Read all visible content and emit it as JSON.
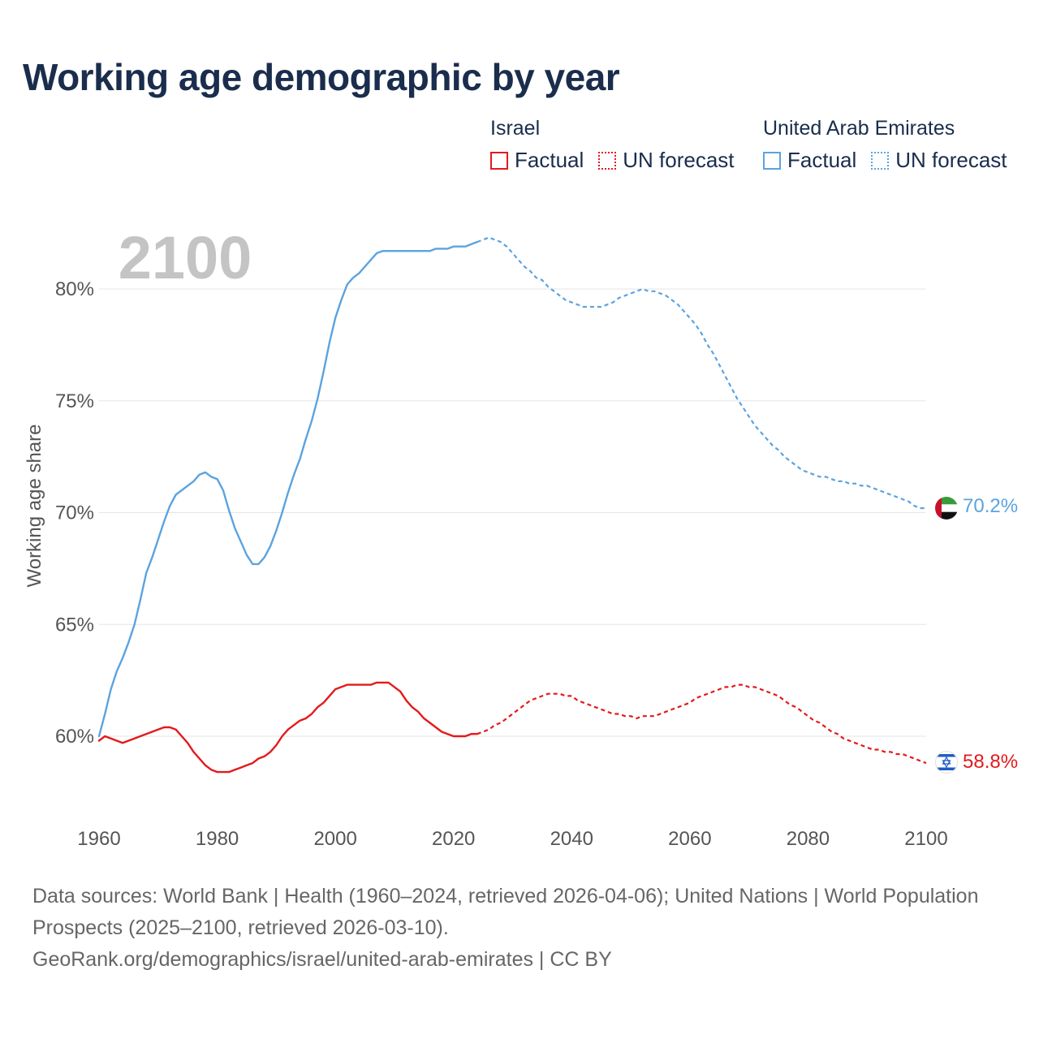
{
  "title": "Working age demographic by year",
  "legend": {
    "groups": [
      {
        "name": "Israel",
        "factual_label": "Factual",
        "forecast_label": "UN forecast",
        "color": "#e31a1c"
      },
      {
        "name": "United Arab Emirates",
        "factual_label": "Factual",
        "forecast_label": "UN forecast",
        "color": "#5ba3e0"
      }
    ]
  },
  "sources": {
    "text": "Data sources: World Bank | Health (1960–2024, retrieved 2026-04-06); United Nations | World Population Prospects (2025–2100, retrieved 2026-03-10).",
    "credit": "GeoRank.org/demographics/israel/united-arab-emirates | CC BY"
  },
  "chart_data": {
    "type": "line",
    "title": "Working age demographic by year",
    "xlabel": "",
    "ylabel": "Working age share",
    "xlim": [
      1960,
      2100
    ],
    "ylim": [
      57.5,
      82.5
    ],
    "x_ticks": [
      1960,
      1980,
      2000,
      2020,
      2040,
      2060,
      2080,
      2100
    ],
    "y_ticks": [
      {
        "value": 60,
        "label": "60%"
      },
      {
        "value": 65,
        "label": "65%"
      },
      {
        "value": 70,
        "label": "70%"
      },
      {
        "value": 75,
        "label": "75%"
      },
      {
        "value": 80,
        "label": "80%"
      }
    ],
    "year_watermark": "2100",
    "factual_end_year": 2024,
    "series": [
      {
        "name": "Israel",
        "color": "#e31a1c",
        "end_label": "58.8%",
        "flag": "israel",
        "points": [
          [
            1960,
            59.8
          ],
          [
            1961,
            60.0
          ],
          [
            1962,
            59.9
          ],
          [
            1963,
            59.8
          ],
          [
            1964,
            59.7
          ],
          [
            1965,
            59.8
          ],
          [
            1966,
            59.9
          ],
          [
            1967,
            60.0
          ],
          [
            1968,
            60.1
          ],
          [
            1969,
            60.2
          ],
          [
            1970,
            60.3
          ],
          [
            1971,
            60.4
          ],
          [
            1972,
            60.4
          ],
          [
            1973,
            60.3
          ],
          [
            1974,
            60.0
          ],
          [
            1975,
            59.7
          ],
          [
            1976,
            59.3
          ],
          [
            1977,
            59.0
          ],
          [
            1978,
            58.7
          ],
          [
            1979,
            58.5
          ],
          [
            1980,
            58.4
          ],
          [
            1981,
            58.4
          ],
          [
            1982,
            58.4
          ],
          [
            1983,
            58.5
          ],
          [
            1984,
            58.6
          ],
          [
            1985,
            58.7
          ],
          [
            1986,
            58.8
          ],
          [
            1987,
            59.0
          ],
          [
            1988,
            59.1
          ],
          [
            1989,
            59.3
          ],
          [
            1990,
            59.6
          ],
          [
            1991,
            60.0
          ],
          [
            1992,
            60.3
          ],
          [
            1993,
            60.5
          ],
          [
            1994,
            60.7
          ],
          [
            1995,
            60.8
          ],
          [
            1996,
            61.0
          ],
          [
            1997,
            61.3
          ],
          [
            1998,
            61.5
          ],
          [
            1999,
            61.8
          ],
          [
            2000,
            62.1
          ],
          [
            2001,
            62.2
          ],
          [
            2002,
            62.3
          ],
          [
            2003,
            62.3
          ],
          [
            2004,
            62.3
          ],
          [
            2005,
            62.3
          ],
          [
            2006,
            62.3
          ],
          [
            2007,
            62.4
          ],
          [
            2008,
            62.4
          ],
          [
            2009,
            62.4
          ],
          [
            2010,
            62.2
          ],
          [
            2011,
            62.0
          ],
          [
            2012,
            61.6
          ],
          [
            2013,
            61.3
          ],
          [
            2014,
            61.1
          ],
          [
            2015,
            60.8
          ],
          [
            2016,
            60.6
          ],
          [
            2017,
            60.4
          ],
          [
            2018,
            60.2
          ],
          [
            2019,
            60.1
          ],
          [
            2020,
            60.0
          ],
          [
            2021,
            60.0
          ],
          [
            2022,
            60.0
          ],
          [
            2023,
            60.1
          ],
          [
            2024,
            60.1
          ],
          [
            2025,
            60.2
          ],
          [
            2026,
            60.3
          ],
          [
            2027,
            60.5
          ],
          [
            2028,
            60.6
          ],
          [
            2029,
            60.8
          ],
          [
            2030,
            61.0
          ],
          [
            2031,
            61.2
          ],
          [
            2032,
            61.4
          ],
          [
            2033,
            61.6
          ],
          [
            2034,
            61.7
          ],
          [
            2035,
            61.8
          ],
          [
            2036,
            61.9
          ],
          [
            2037,
            61.9
          ],
          [
            2038,
            61.9
          ],
          [
            2039,
            61.8
          ],
          [
            2040,
            61.8
          ],
          [
            2041,
            61.6
          ],
          [
            2042,
            61.5
          ],
          [
            2043,
            61.4
          ],
          [
            2044,
            61.3
          ],
          [
            2045,
            61.2
          ],
          [
            2046,
            61.1
          ],
          [
            2047,
            61.0
          ],
          [
            2048,
            61.0
          ],
          [
            2049,
            60.9
          ],
          [
            2050,
            60.9
          ],
          [
            2051,
            60.8
          ],
          [
            2052,
            60.9
          ],
          [
            2053,
            60.9
          ],
          [
            2054,
            60.9
          ],
          [
            2055,
            61.0
          ],
          [
            2056,
            61.1
          ],
          [
            2057,
            61.2
          ],
          [
            2058,
            61.3
          ],
          [
            2059,
            61.4
          ],
          [
            2060,
            61.5
          ],
          [
            2061,
            61.7
          ],
          [
            2062,
            61.8
          ],
          [
            2063,
            61.9
          ],
          [
            2064,
            62.0
          ],
          [
            2065,
            62.1
          ],
          [
            2066,
            62.2
          ],
          [
            2067,
            62.2
          ],
          [
            2068,
            62.3
          ],
          [
            2069,
            62.3
          ],
          [
            2070,
            62.2
          ],
          [
            2071,
            62.2
          ],
          [
            2072,
            62.1
          ],
          [
            2073,
            62.0
          ],
          [
            2074,
            61.9
          ],
          [
            2075,
            61.8
          ],
          [
            2076,
            61.6
          ],
          [
            2077,
            61.4
          ],
          [
            2078,
            61.3
          ],
          [
            2079,
            61.1
          ],
          [
            2080,
            60.9
          ],
          [
            2081,
            60.7
          ],
          [
            2082,
            60.6
          ],
          [
            2083,
            60.4
          ],
          [
            2084,
            60.2
          ],
          [
            2085,
            60.1
          ],
          [
            2086,
            59.9
          ],
          [
            2087,
            59.8
          ],
          [
            2088,
            59.7
          ],
          [
            2089,
            59.6
          ],
          [
            2090,
            59.5
          ],
          [
            2091,
            59.4
          ],
          [
            2092,
            59.4
          ],
          [
            2093,
            59.3
          ],
          [
            2094,
            59.3
          ],
          [
            2095,
            59.2
          ],
          [
            2096,
            59.2
          ],
          [
            2097,
            59.1
          ],
          [
            2098,
            59.0
          ],
          [
            2099,
            58.9
          ],
          [
            2100,
            58.8
          ]
        ]
      },
      {
        "name": "United Arab Emirates",
        "color": "#5ba3e0",
        "end_label": "70.2%",
        "flag": "uae",
        "points": [
          [
            1960,
            60.0
          ],
          [
            1961,
            61.0
          ],
          [
            1962,
            62.1
          ],
          [
            1963,
            62.9
          ],
          [
            1964,
            63.5
          ],
          [
            1965,
            64.2
          ],
          [
            1966,
            65.0
          ],
          [
            1967,
            66.1
          ],
          [
            1968,
            67.3
          ],
          [
            1969,
            68.0
          ],
          [
            1970,
            68.8
          ],
          [
            1971,
            69.6
          ],
          [
            1972,
            70.3
          ],
          [
            1973,
            70.8
          ],
          [
            1974,
            71.0
          ],
          [
            1975,
            71.2
          ],
          [
            1976,
            71.4
          ],
          [
            1977,
            71.7
          ],
          [
            1978,
            71.8
          ],
          [
            1979,
            71.6
          ],
          [
            1980,
            71.5
          ],
          [
            1981,
            71.0
          ],
          [
            1982,
            70.1
          ],
          [
            1983,
            69.3
          ],
          [
            1984,
            68.7
          ],
          [
            1985,
            68.1
          ],
          [
            1986,
            67.7
          ],
          [
            1987,
            67.7
          ],
          [
            1988,
            68.0
          ],
          [
            1989,
            68.5
          ],
          [
            1990,
            69.2
          ],
          [
            1991,
            70.0
          ],
          [
            1992,
            70.9
          ],
          [
            1993,
            71.7
          ],
          [
            1994,
            72.4
          ],
          [
            1995,
            73.3
          ],
          [
            1996,
            74.1
          ],
          [
            1997,
            75.1
          ],
          [
            1998,
            76.3
          ],
          [
            1999,
            77.6
          ],
          [
            2000,
            78.7
          ],
          [
            2001,
            79.5
          ],
          [
            2002,
            80.2
          ],
          [
            2003,
            80.5
          ],
          [
            2004,
            80.7
          ],
          [
            2005,
            81.0
          ],
          [
            2006,
            81.3
          ],
          [
            2007,
            81.6
          ],
          [
            2008,
            81.7
          ],
          [
            2009,
            81.7
          ],
          [
            2010,
            81.7
          ],
          [
            2011,
            81.7
          ],
          [
            2012,
            81.7
          ],
          [
            2013,
            81.7
          ],
          [
            2014,
            81.7
          ],
          [
            2015,
            81.7
          ],
          [
            2016,
            81.7
          ],
          [
            2017,
            81.8
          ],
          [
            2018,
            81.8
          ],
          [
            2019,
            81.8
          ],
          [
            2020,
            81.9
          ],
          [
            2021,
            81.9
          ],
          [
            2022,
            81.9
          ],
          [
            2023,
            82.0
          ],
          [
            2024,
            82.1
          ],
          [
            2025,
            82.2
          ],
          [
            2026,
            82.3
          ],
          [
            2027,
            82.2
          ],
          [
            2028,
            82.1
          ],
          [
            2029,
            81.9
          ],
          [
            2030,
            81.6
          ],
          [
            2031,
            81.3
          ],
          [
            2032,
            81.0
          ],
          [
            2033,
            80.8
          ],
          [
            2034,
            80.5
          ],
          [
            2035,
            80.4
          ],
          [
            2036,
            80.1
          ],
          [
            2037,
            79.9
          ],
          [
            2038,
            79.7
          ],
          [
            2039,
            79.5
          ],
          [
            2040,
            79.4
          ],
          [
            2041,
            79.3
          ],
          [
            2042,
            79.2
          ],
          [
            2043,
            79.2
          ],
          [
            2044,
            79.2
          ],
          [
            2045,
            79.2
          ],
          [
            2046,
            79.3
          ],
          [
            2047,
            79.4
          ],
          [
            2048,
            79.6
          ],
          [
            2049,
            79.7
          ],
          [
            2050,
            79.8
          ],
          [
            2051,
            79.9
          ],
          [
            2052,
            80.0
          ],
          [
            2053,
            79.9
          ],
          [
            2054,
            79.9
          ],
          [
            2055,
            79.8
          ],
          [
            2056,
            79.7
          ],
          [
            2057,
            79.5
          ],
          [
            2058,
            79.3
          ],
          [
            2059,
            79.0
          ],
          [
            2060,
            78.7
          ],
          [
            2061,
            78.4
          ],
          [
            2062,
            78.0
          ],
          [
            2063,
            77.5
          ],
          [
            2064,
            77.1
          ],
          [
            2065,
            76.6
          ],
          [
            2066,
            76.1
          ],
          [
            2067,
            75.6
          ],
          [
            2068,
            75.1
          ],
          [
            2069,
            74.7
          ],
          [
            2070,
            74.3
          ],
          [
            2071,
            73.9
          ],
          [
            2072,
            73.6
          ],
          [
            2073,
            73.3
          ],
          [
            2074,
            73.0
          ],
          [
            2075,
            72.8
          ],
          [
            2076,
            72.5
          ],
          [
            2077,
            72.3
          ],
          [
            2078,
            72.1
          ],
          [
            2079,
            71.9
          ],
          [
            2080,
            71.8
          ],
          [
            2081,
            71.7
          ],
          [
            2082,
            71.6
          ],
          [
            2083,
            71.6
          ],
          [
            2084,
            71.5
          ],
          [
            2085,
            71.4
          ],
          [
            2086,
            71.4
          ],
          [
            2087,
            71.3
          ],
          [
            2088,
            71.3
          ],
          [
            2089,
            71.2
          ],
          [
            2090,
            71.2
          ],
          [
            2091,
            71.1
          ],
          [
            2092,
            71.0
          ],
          [
            2093,
            70.9
          ],
          [
            2094,
            70.8
          ],
          [
            2095,
            70.7
          ],
          [
            2096,
            70.6
          ],
          [
            2097,
            70.5
          ],
          [
            2098,
            70.3
          ],
          [
            2099,
            70.2
          ],
          [
            2100,
            70.2
          ]
        ]
      }
    ]
  }
}
